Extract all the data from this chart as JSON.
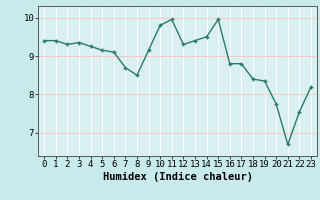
{
  "x": [
    0,
    1,
    2,
    3,
    4,
    5,
    6,
    7,
    8,
    9,
    10,
    11,
    12,
    13,
    14,
    15,
    16,
    17,
    18,
    19,
    20,
    21,
    22,
    23
  ],
  "y": [
    9.4,
    9.4,
    9.3,
    9.35,
    9.25,
    9.15,
    9.1,
    8.7,
    8.5,
    9.15,
    9.8,
    9.95,
    9.3,
    9.4,
    9.5,
    9.95,
    8.8,
    8.8,
    8.4,
    8.35,
    7.75,
    6.7,
    7.55,
    8.2
  ],
  "line_color": "#2a7a6a",
  "marker": "+",
  "marker_size": 3,
  "marker_linewidth": 1.0,
  "bg_color": "#c8eaea",
  "plot_bg_color": "#daf0f0",
  "grid_color": "#f5c8c8",
  "xlabel": "Humidex (Indice chaleur)",
  "ylim": [
    6.4,
    10.3
  ],
  "xlim": [
    -0.5,
    23.5
  ],
  "yticks": [
    7,
    8,
    9,
    10
  ],
  "xticks": [
    0,
    1,
    2,
    3,
    4,
    5,
    6,
    7,
    8,
    9,
    10,
    11,
    12,
    13,
    14,
    15,
    16,
    17,
    18,
    19,
    20,
    21,
    22,
    23
  ],
  "tick_fontsize": 6.5,
  "xlabel_fontsize": 7.5,
  "linewidth": 1.0
}
